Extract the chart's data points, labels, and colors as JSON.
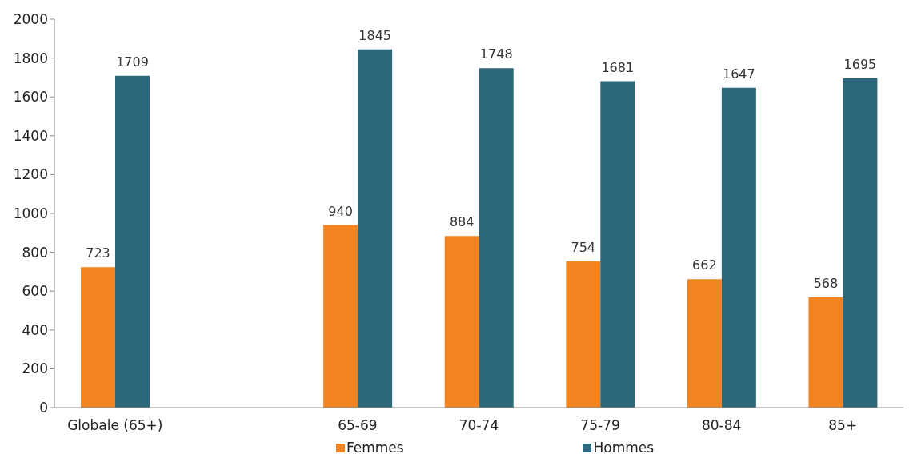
{
  "chart_data": {
    "type": "bar",
    "categories": [
      "Globale (65+)",
      null,
      "65-69",
      "70-74",
      "75-79",
      "80-84",
      "85+"
    ],
    "series": [
      {
        "name": "Femmes",
        "color": "#f28522",
        "values": [
          723,
          null,
          940,
          884,
          754,
          662,
          568
        ]
      },
      {
        "name": "Hommes",
        "color": "#2e687d",
        "values": [
          1709,
          null,
          1845,
          1748,
          1681,
          1647,
          1695
        ]
      }
    ],
    "ylim": [
      0,
      2000
    ],
    "yticks": [
      0,
      200,
      400,
      600,
      800,
      1000,
      1200,
      1400,
      1600,
      1800,
      2000
    ],
    "grid": false,
    "legend": "bottom",
    "data_labels": true
  }
}
